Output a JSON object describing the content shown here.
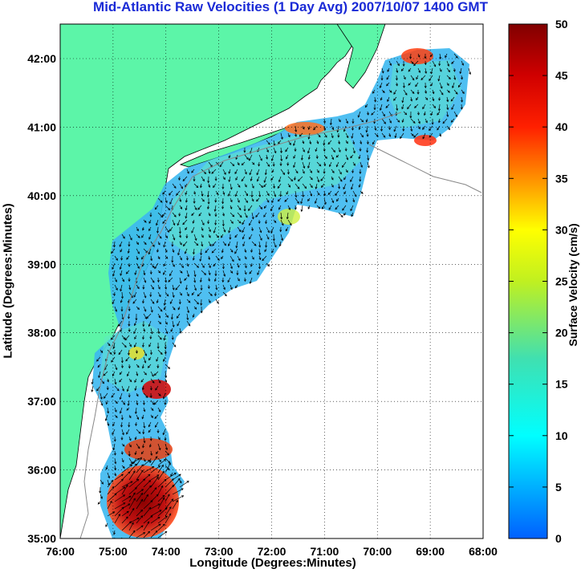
{
  "title": "Mid-Atlantic Raw Velocities (1 Day Avg) 2007/10/07 1400 GMT",
  "x_axis": {
    "label": "Longitude (Degrees:Minutes)",
    "ticks": [
      "76:00",
      "75:00",
      "74:00",
      "73:00",
      "72:00",
      "71:00",
      "70:00",
      "69:00",
      "68:00"
    ]
  },
  "y_axis": {
    "label": "Latitude (Degrees:Minutes)",
    "ticks": [
      "35:00",
      "36:00",
      "37:00",
      "38:00",
      "39:00",
      "40:00",
      "41:00",
      "42:00"
    ]
  },
  "colorbar": {
    "label": "Surface Velocity (cm/s)",
    "ticks": [
      "0",
      "5",
      "10",
      "15",
      "20",
      "25",
      "30",
      "35",
      "40",
      "45",
      "50"
    ],
    "min": 0,
    "max": 50
  },
  "colors": {
    "land": "#5cf5a8",
    "title": "#1a2ad6",
    "high_velocity": "#8b0000",
    "low_velocity": "#1e90ff"
  },
  "map": {
    "lon_range": [
      -76,
      -68
    ],
    "lat_range": [
      35,
      42.5
    ],
    "grid": true,
    "type": "surface current velocity map with vector arrows"
  }
}
